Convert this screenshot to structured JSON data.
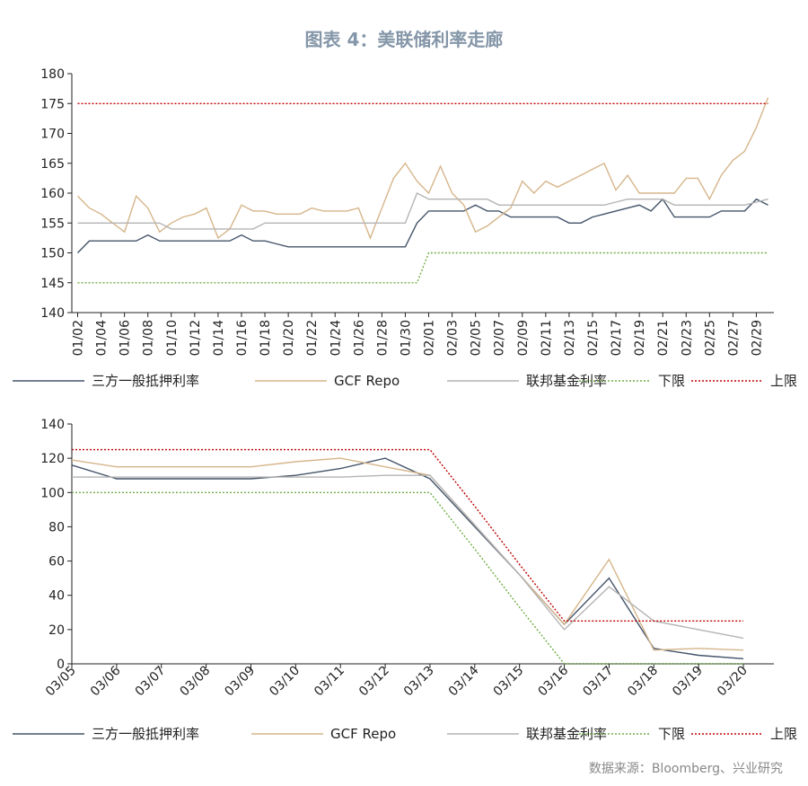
{
  "title": "图表 4：美联储利率走廊",
  "source": "数据来源：Bloomberg、兴业研究",
  "colors": {
    "tri_party": "#44546a",
    "gcf": "#d6b58a",
    "fed_funds": "#b4b4b4",
    "lower": "#70ad47",
    "upper": "#c00000"
  },
  "chart_data": [
    {
      "type": "line",
      "ylim": [
        140,
        180
      ],
      "yticks": [
        140,
        145,
        150,
        155,
        160,
        165,
        170,
        175,
        180
      ],
      "x_tick_labels": [
        "01/02",
        "01/04",
        "01/06",
        "01/08",
        "01/10",
        "01/12",
        "01/14",
        "01/16",
        "01/18",
        "01/20",
        "01/22",
        "01/24",
        "01/26",
        "01/28",
        "01/30",
        "02/01",
        "02/03",
        "02/05",
        "02/07",
        "02/09",
        "02/11",
        "02/13",
        "02/15",
        "02/17",
        "02/19",
        "02/21",
        "02/23",
        "02/25",
        "02/27",
        "02/29"
      ],
      "points": 60,
      "series": [
        {
          "key": "tri_party",
          "name": "三方一般抵押利率",
          "dash": "",
          "values": [
            150,
            152,
            152,
            152,
            152,
            152,
            153,
            152,
            152,
            152,
            152,
            152,
            152,
            152,
            153,
            152,
            152,
            151.5,
            151,
            151,
            151,
            151,
            151,
            151,
            151,
            151,
            151,
            151,
            151,
            155,
            157,
            157,
            157,
            157,
            158,
            157,
            157,
            156,
            156,
            156,
            156,
            156,
            155,
            155,
            156,
            156.5,
            157,
            157.5,
            158,
            157,
            159,
            156,
            156,
            156,
            156,
            157,
            157,
            157,
            159,
            158
          ]
        },
        {
          "key": "gcf",
          "name": "GCF Repo",
          "dash": "",
          "values": [
            159.5,
            157.5,
            156.5,
            155,
            153.5,
            159.5,
            157.5,
            153.5,
            155,
            156,
            156.5,
            157.5,
            152.5,
            154,
            158,
            157,
            157,
            156.5,
            156.5,
            156.5,
            157.5,
            157,
            157,
            157,
            157.5,
            152.5,
            157.5,
            162.5,
            165,
            162,
            160,
            164.5,
            160,
            158,
            153.5,
            154.5,
            156,
            157.5,
            162,
            160,
            162,
            161,
            162,
            163,
            164,
            165,
            160.5,
            163,
            160,
            160,
            160,
            160,
            162.5,
            162.5,
            159,
            163,
            165.5,
            167,
            171,
            176
          ]
        },
        {
          "key": "fed_funds",
          "name": "联邦基金利率",
          "dash": "",
          "values": [
            155,
            155,
            155,
            155,
            155,
            155,
            155,
            155,
            154,
            154,
            154,
            154,
            154,
            154,
            154,
            154,
            155,
            155,
            155,
            155,
            155,
            155,
            155,
            155,
            155,
            155,
            155,
            155,
            155,
            160,
            159,
            159,
            159,
            159,
            159,
            159,
            158,
            158,
            158,
            158,
            158,
            158,
            158,
            158,
            158,
            158,
            158.5,
            159,
            159,
            159,
            159,
            158,
            158,
            158,
            158,
            158,
            158,
            158,
            158.5,
            159
          ]
        },
        {
          "key": "lower",
          "name": "下限",
          "dash": "2,2",
          "values": [
            145,
            145,
            145,
            145,
            145,
            145,
            145,
            145,
            145,
            145,
            145,
            145,
            145,
            145,
            145,
            145,
            145,
            145,
            145,
            145,
            145,
            145,
            145,
            145,
            145,
            145,
            145,
            145,
            145,
            145,
            150,
            150,
            150,
            150,
            150,
            150,
            150,
            150,
            150,
            150,
            150,
            150,
            150,
            150,
            150,
            150,
            150,
            150,
            150,
            150,
            150,
            150,
            150,
            150,
            150,
            150,
            150,
            150,
            150,
            150
          ]
        },
        {
          "key": "upper",
          "name": "上限",
          "dash": "2,2",
          "values": [
            175,
            175,
            175,
            175,
            175,
            175,
            175,
            175,
            175,
            175,
            175,
            175,
            175,
            175,
            175,
            175,
            175,
            175,
            175,
            175,
            175,
            175,
            175,
            175,
            175,
            175,
            175,
            175,
            175,
            175,
            175,
            175,
            175,
            175,
            175,
            175,
            175,
            175,
            175,
            175,
            175,
            175,
            175,
            175,
            175,
            175,
            175,
            175,
            175,
            175,
            175,
            175,
            175,
            175,
            175,
            175,
            175,
            175,
            175,
            175
          ]
        }
      ]
    },
    {
      "type": "line",
      "ylim": [
        0,
        140
      ],
      "yticks": [
        0,
        20,
        40,
        60,
        80,
        100,
        120,
        140
      ],
      "categories": [
        "03/05",
        "03/06",
        "03/07",
        "03/08",
        "03/09",
        "03/10",
        "03/11",
        "03/12",
        "03/13",
        "03/14",
        "03/15",
        "03/16",
        "03/17",
        "03/18",
        "03/19",
        "03/20"
      ],
      "series": [
        {
          "key": "tri_party",
          "name": "三方一般抵押利率",
          "dash": "",
          "values": [
            116,
            108,
            108,
            108,
            108,
            110,
            114,
            120,
            108,
            80,
            52,
            23,
            50,
            9,
            5,
            3
          ]
        },
        {
          "key": "gcf",
          "name": "GCF Repo",
          "dash": "",
          "values": [
            119,
            115,
            115,
            115,
            115,
            118,
            120,
            115,
            110,
            81,
            52,
            23,
            61,
            8,
            9,
            8
          ]
        },
        {
          "key": "fed_funds",
          "name": "联邦基金利率",
          "dash": "",
          "values": [
            109,
            109,
            109,
            109,
            109,
            109,
            109,
            110,
            110,
            81,
            52,
            20,
            45,
            25,
            20,
            15
          ]
        },
        {
          "key": "lower",
          "name": "下限",
          "dash": "2,2",
          "values": [
            100,
            100,
            100,
            100,
            100,
            100,
            100,
            100,
            100,
            67,
            33,
            0,
            0,
            0,
            0,
            0
          ]
        },
        {
          "key": "upper",
          "name": "上限",
          "dash": "2,2",
          "values": [
            125,
            125,
            125,
            125,
            125,
            125,
            125,
            125,
            125,
            92,
            58,
            25,
            25,
            25,
            25,
            25
          ]
        }
      ]
    }
  ]
}
